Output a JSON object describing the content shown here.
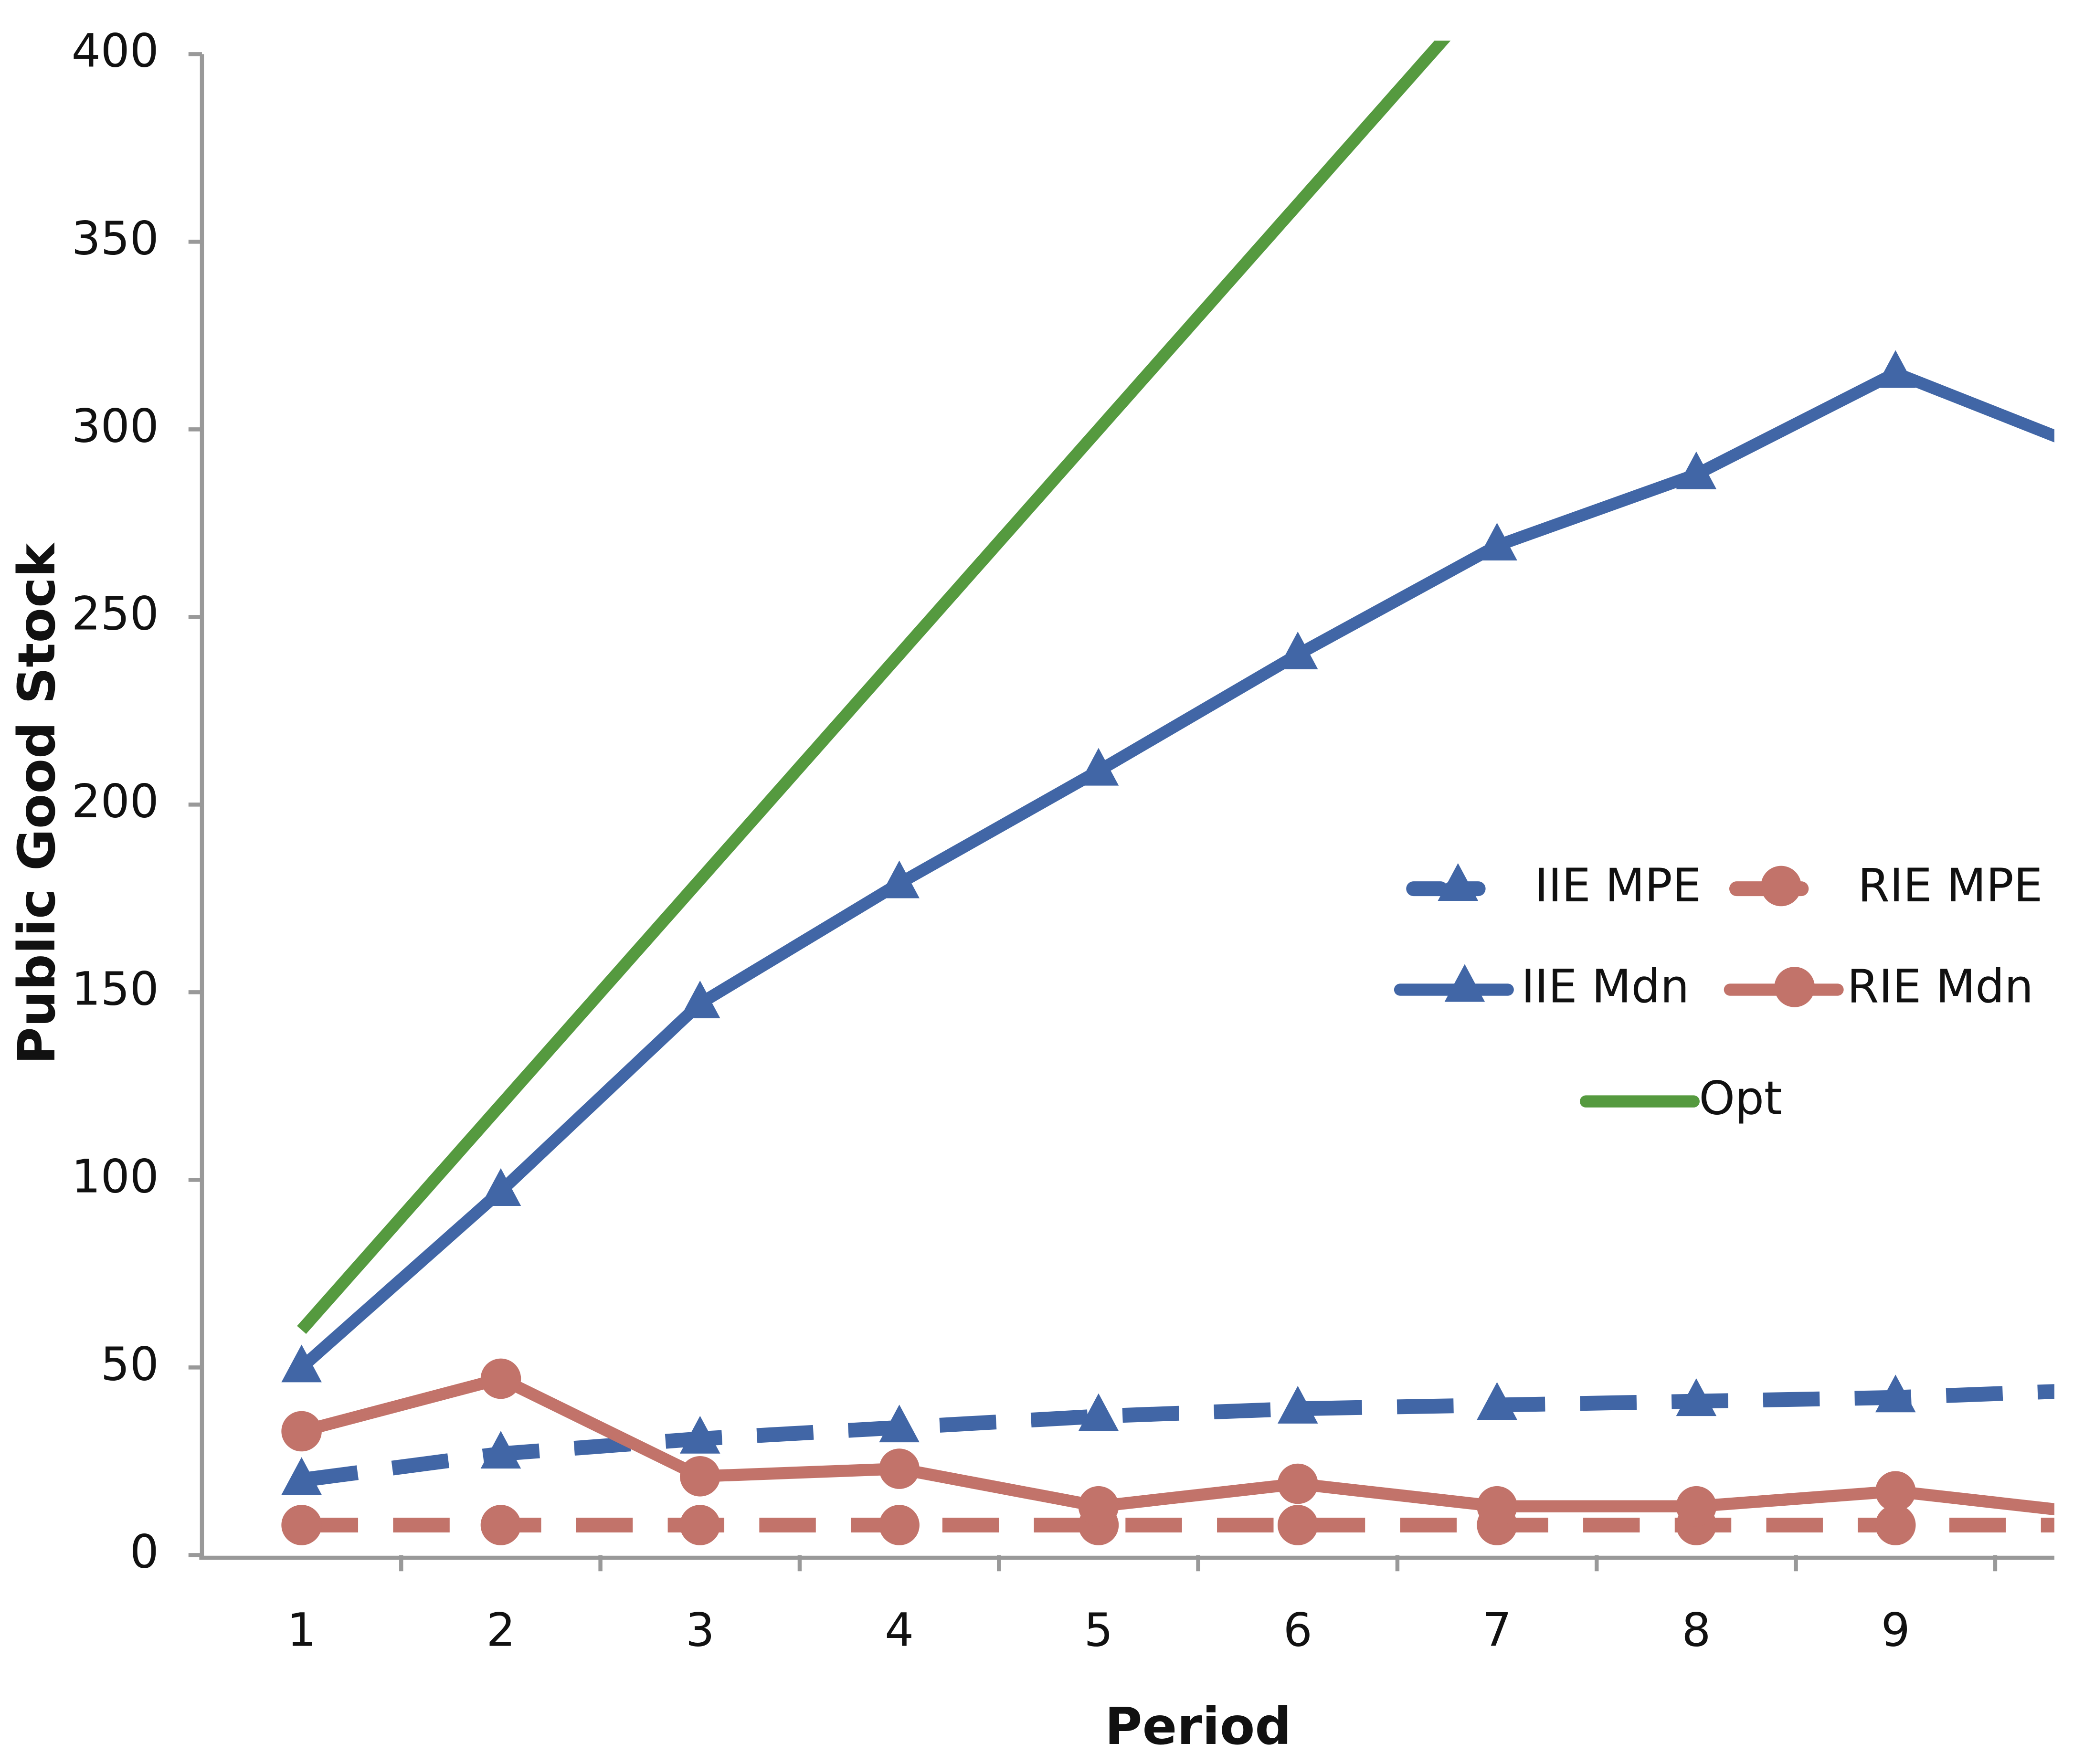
{
  "chart_data": {
    "type": "line",
    "x_label": "Period",
    "y_label": "Public Good Stock",
    "categories": [
      "1",
      "2",
      "3",
      "4",
      "5",
      "6",
      "7",
      "8",
      "9",
      null
    ],
    "ylim": [
      0,
      400
    ],
    "yticks": [
      0,
      50,
      100,
      150,
      200,
      250,
      300,
      350,
      400
    ],
    "grid": false,
    "legend": "right",
    "series": [
      {
        "name": "IIE MPE",
        "color": "#4166a6",
        "dash": true,
        "marker": "triangle",
        "values": [
          20,
          27,
          31,
          34,
          37,
          39,
          40,
          41,
          42,
          44
        ]
      },
      {
        "name": "RIE MPE",
        "color": "#c2736a",
        "dash": true,
        "marker": "circle",
        "values": [
          8,
          8,
          8,
          8,
          8,
          8,
          8,
          8,
          8,
          8
        ]
      },
      {
        "name": "IIE Mdn",
        "color": "#4166a6",
        "dash": false,
        "marker": "triangle",
        "values": [
          50,
          97,
          147,
          179,
          209,
          240,
          269,
          288,
          315,
          294
        ]
      },
      {
        "name": "RIE Mdn",
        "color": "#c2736a",
        "dash": false,
        "marker": "circle",
        "values": [
          33,
          47,
          21,
          23,
          13,
          19,
          13,
          13,
          17,
          11
        ]
      },
      {
        "name": "Opt",
        "color": "#559a3f",
        "dash": false,
        "marker": "none",
        "values": [
          60,
          120,
          180,
          240,
          300,
          360,
          420,
          null,
          null,
          null
        ]
      }
    ]
  }
}
